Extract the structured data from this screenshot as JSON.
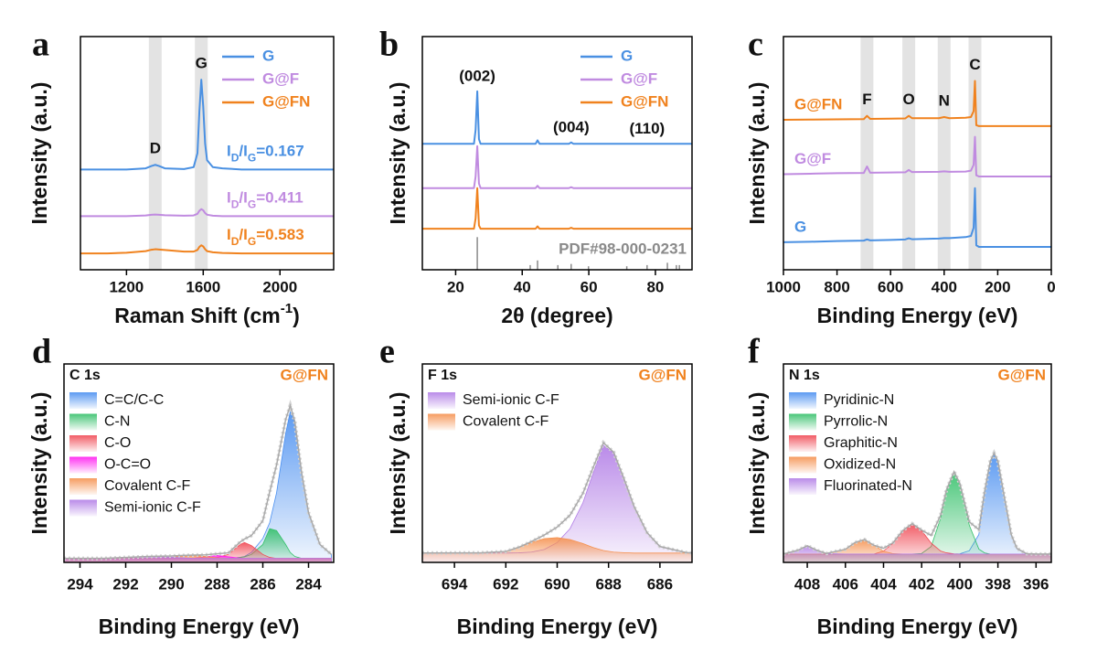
{
  "chart_data": [
    {
      "type": "line",
      "panel_label": "a",
      "y_label": "Intensity (a.u.)",
      "x_label": [
        "Raman Shift (cm",
        "-1",
        ")"
      ],
      "xlim": [
        960,
        2280
      ],
      "ylim": [
        0,
        100
      ],
      "xticks": [
        1200,
        1600,
        2000
      ],
      "legend": "upper right",
      "x": [
        960,
        1100,
        1200,
        1300,
        1330,
        1350,
        1370,
        1400,
        1500,
        1550,
        1570,
        1580,
        1590,
        1600,
        1610,
        1620,
        1650,
        1700,
        1800,
        2000,
        2280
      ],
      "series": [
        {
          "name": "G",
          "color": "#4a90e2",
          "values": [
            43,
            43,
            43,
            43.5,
            44.5,
            45,
            44.5,
            43.5,
            43.2,
            44,
            50,
            68,
            81.5,
            70,
            54,
            47,
            44,
            43.5,
            43,
            43,
            43
          ]
        },
        {
          "name": "G@F",
          "color": "#c08be0",
          "values": [
            23,
            23,
            23,
            23.3,
            23.6,
            23.7,
            23.6,
            23.4,
            23.2,
            23.3,
            24,
            25.3,
            26,
            25.5,
            24.3,
            23.6,
            23.2,
            23,
            23,
            23,
            23
          ]
        },
        {
          "name": "G@FN",
          "color": "#f0821e",
          "values": [
            7,
            7,
            7.3,
            8,
            8.6,
            8.8,
            8.7,
            8.5,
            7.8,
            7.8,
            8.5,
            9.8,
            10.5,
            10,
            8.8,
            8,
            7.5,
            7.2,
            7,
            7,
            7
          ]
        }
      ],
      "bands": [
        {
          "label": "D",
          "x": 1350
        },
        {
          "label": "G",
          "x": 1590
        }
      ],
      "ratio_labels": [
        [
          "I",
          "D",
          "/I",
          "G",
          "=0.167"
        ],
        [
          "I",
          "D",
          "/I",
          "G",
          "=0.411"
        ],
        [
          "I",
          "D",
          "/I",
          "G",
          "=0.583"
        ]
      ]
    },
    {
      "type": "line",
      "panel_label": "b",
      "y_label": "Intensity (a.u.)",
      "x_label": [
        "2θ (degree)"
      ],
      "xlim": [
        10,
        91
      ],
      "ylim": [
        0,
        100
      ],
      "xticks": [
        20,
        40,
        60,
        80
      ],
      "legend": "upper right",
      "x": [
        10,
        25.5,
        26,
        26.5,
        27,
        27.5,
        44,
        44.6,
        45.2,
        54,
        54.7,
        55.4,
        91
      ],
      "series": [
        {
          "name": "G",
          "color": "#4a90e2",
          "values": [
            54,
            54,
            60,
            76.5,
            56,
            54,
            54,
            55.5,
            54,
            54,
            54.6,
            54,
            54
          ]
        },
        {
          "name": "G@F",
          "color": "#c08be0",
          "values": [
            35,
            35,
            40,
            53,
            37,
            35,
            35,
            36,
            35,
            35,
            35.4,
            35,
            35
          ]
        },
        {
          "name": "G@FN",
          "color": "#f0821e",
          "values": [
            17.6,
            17.6,
            22,
            35,
            19,
            17.6,
            17.6,
            18.6,
            17.6,
            17.6,
            18,
            17.6,
            17.6
          ]
        }
      ],
      "annotations": [
        {
          "label": "(002)",
          "x": 26.5
        },
        {
          "label": "(004)",
          "x": 54.7
        },
        {
          "label": "(110)",
          "x": 77.5
        }
      ],
      "reference": {
        "name": "PDF#98-000-0231",
        "color": "#8a8a8a",
        "positions": [
          26.5,
          42.4,
          44.6,
          50.7,
          54.7,
          59.9,
          71.4,
          77.5,
          83.6,
          86.3,
          87.2
        ],
        "heights": [
          14,
          2,
          4,
          2,
          2.5,
          1.5,
          1.5,
          2,
          3,
          2,
          2
        ]
      }
    },
    {
      "type": "line",
      "panel_label": "c",
      "y_label": "Intensity (a.u.)",
      "x_label": [
        "Binding Energy (eV)"
      ],
      "xlim": [
        1000,
        0
      ],
      "ylim": [
        0,
        100
      ],
      "xticks": [
        1000,
        800,
        600,
        400,
        200,
        0
      ],
      "legend": "inline",
      "x": [
        1000,
        900,
        800,
        700,
        688,
        676,
        600,
        545,
        532,
        520,
        420,
        400,
        380,
        320,
        300,
        290,
        285,
        280,
        270,
        200,
        100,
        0
      ],
      "series": [
        {
          "name": "G@FN",
          "color": "#f0821e",
          "values": [
            64.3,
            64.4,
            64.5,
            64.6,
            66,
            64.7,
            64.8,
            64.9,
            66,
            65,
            65,
            65.5,
            65,
            65.2,
            65.5,
            68,
            81,
            62,
            61.6,
            61.6,
            61.6,
            61.6
          ]
        },
        {
          "name": "G@F",
          "color": "#c08be0",
          "values": [
            41,
            41.2,
            41.4,
            41.5,
            44.3,
            41.6,
            41.7,
            41.8,
            42.8,
            41.9,
            42,
            42.2,
            42,
            42.1,
            42.5,
            45,
            57,
            40.5,
            40,
            40,
            40,
            40
          ]
        },
        {
          "name": "G",
          "color": "#4a90e2",
          "values": [
            11.8,
            12,
            12.3,
            12.5,
            13,
            12.6,
            12.8,
            13,
            13.5,
            13.1,
            13.4,
            13.6,
            13.6,
            14,
            14.5,
            18,
            35,
            10.5,
            9.8,
            9.8,
            9.8,
            9.8
          ]
        }
      ],
      "bands": [
        {
          "label": "F",
          "x": 688
        },
        {
          "label": "O",
          "x": 532
        },
        {
          "label": "N",
          "x": 400
        },
        {
          "label": "C",
          "x": 285
        }
      ]
    },
    {
      "type": "area",
      "panel_label": "d",
      "y_label": "Intensity (a.u.)",
      "x_label": [
        "Binding Energy (eV)"
      ],
      "region": "C 1s",
      "sample": "G@FN",
      "sample_color": "#f0821e",
      "xlim": [
        294.7,
        282.9
      ],
      "ylim": [
        0,
        100
      ],
      "xticks": [
        294,
        292,
        290,
        288,
        286,
        284
      ],
      "legend": "upper left",
      "x": [
        294.7,
        293,
        292,
        291,
        290,
        289.5,
        289,
        288.5,
        288,
        287.5,
        287,
        286.8,
        286.5,
        286,
        285.7,
        285.4,
        285,
        284.8,
        284.6,
        284.3,
        284,
        283.5,
        283
      ],
      "series": [
        {
          "name": "C=C/C-C",
          "color": "#4a8ff0",
          "values": [
            2,
            2,
            2,
            2,
            2,
            2,
            2,
            2,
            2,
            2,
            2.5,
            3,
            5,
            12,
            20,
            35,
            65,
            76,
            70,
            45,
            25,
            9,
            4
          ]
        },
        {
          "name": "C-N",
          "color": "#35c06a",
          "values": [
            2,
            2,
            2,
            2,
            2,
            2,
            2,
            2,
            2,
            2,
            2.5,
            2.8,
            4,
            9,
            17,
            16,
            9,
            5,
            3,
            2,
            2,
            2,
            2
          ]
        },
        {
          "name": "C-O",
          "color": "#f04a55",
          "values": [
            2,
            2,
            2,
            2,
            2,
            2,
            2,
            2,
            2.5,
            4,
            9,
            10,
            8.5,
            4,
            2.5,
            2,
            2,
            2,
            2,
            2,
            2,
            2,
            2
          ]
        },
        {
          "name": "O-C=O",
          "color": "#ff1cf0",
          "values": [
            2,
            2,
            2,
            2,
            2,
            2,
            2.2,
            2.8,
            3.5,
            2.8,
            2.2,
            2,
            2,
            2,
            2,
            2,
            2,
            2,
            2,
            2,
            2,
            2,
            2
          ]
        },
        {
          "name": "Covalent C-F",
          "color": "#f5914f",
          "values": [
            2,
            2,
            2,
            2,
            2.5,
            3.2,
            3.5,
            3,
            2.3,
            2,
            2,
            2,
            2,
            2,
            2,
            2,
            2,
            2,
            2,
            2,
            2,
            2,
            2
          ]
        },
        {
          "name": "Semi-ionic C-F",
          "color": "#b27ee6",
          "values": [
            2,
            2,
            2.5,
            3,
            2.7,
            2.3,
            2,
            2,
            2,
            2,
            2,
            2,
            2,
            2,
            2,
            2,
            2,
            2,
            2,
            2,
            2,
            2,
            2
          ]
        }
      ],
      "envelope": {
        "color": "#a9a9a9",
        "values": [
          2,
          2,
          2.5,
          3,
          3.2,
          3.5,
          3.7,
          3.8,
          4.3,
          4.8,
          10.2,
          11.8,
          13.5,
          21,
          35.5,
          49,
          72,
          79,
          71,
          45,
          25,
          9,
          4
        ]
      }
    },
    {
      "type": "area",
      "panel_label": "e",
      "y_label": "Intensity (a.u.)",
      "x_label": [
        "Binding Energy (eV)"
      ],
      "region": "F 1s",
      "sample": "G@FN",
      "sample_color": "#f0821e",
      "xlim": [
        695.25,
        684.75
      ],
      "ylim": [
        0,
        100
      ],
      "xticks": [
        694,
        692,
        690,
        688,
        686
      ],
      "legend": "upper left",
      "x": [
        695.25,
        693,
        692,
        691.5,
        691,
        690.5,
        690,
        689.5,
        689,
        688.6,
        688.2,
        687.8,
        687.4,
        687,
        686.5,
        686,
        685,
        684.75
      ],
      "series": [
        {
          "name": "Semi-ionic C-F",
          "color": "#b27ee6",
          "values": [
            4.7,
            4.7,
            4.7,
            4.8,
            5.2,
            6.5,
            10,
            17,
            30,
            45,
            59,
            55,
            42,
            28,
            15,
            8,
            5,
            4.7
          ]
        },
        {
          "name": "Covalent C-F",
          "color": "#f5914f",
          "values": [
            4.7,
            4.8,
            5.5,
            7.5,
            10,
            12,
            12.5,
            11.5,
            9.5,
            7.5,
            6,
            5.2,
            4.9,
            4.7,
            4.7,
            4.7,
            4.7,
            4.7
          ]
        }
      ],
      "envelope": {
        "color": "#a9a9a9",
        "values": [
          4.7,
          4.8,
          5.5,
          7.6,
          10.5,
          13.8,
          17.8,
          23.8,
          34.8,
          47.8,
          60.3,
          55.5,
          42.2,
          28,
          15,
          8,
          5,
          4.7
        ]
      }
    },
    {
      "type": "area",
      "panel_label": "f",
      "y_label": "Intensity (a.u.)",
      "x_label": [
        "Binding Energy (eV)"
      ],
      "region": "N 1s",
      "sample": "G@FN",
      "sample_color": "#f0821e",
      "xlim": [
        409.25,
        395.2
      ],
      "ylim": [
        0,
        100
      ],
      "xticks": [
        408,
        406,
        404,
        402,
        400,
        398,
        396
      ],
      "legend": "upper left",
      "x": [
        409.25,
        408.5,
        408,
        407.5,
        407,
        406,
        405.5,
        405,
        404.5,
        404,
        403.5,
        403,
        402.5,
        402,
        401.5,
        401,
        400.7,
        400.3,
        400,
        399.5,
        399,
        398.7,
        398.4,
        398.2,
        398,
        397.7,
        397.3,
        397,
        396.5,
        396,
        395.2
      ],
      "series": [
        {
          "name": "Pyridinic-N",
          "color": "#4a8ff0",
          "values": [
            4.2,
            4.2,
            4.2,
            4.2,
            4.2,
            4.2,
            4.2,
            4.2,
            4.2,
            4.2,
            4.2,
            4.2,
            4.2,
            4.2,
            4.2,
            4.2,
            4.2,
            4.2,
            4.3,
            5.9,
            14,
            35,
            51,
            55,
            51,
            35,
            14,
            7,
            4.4,
            4.2,
            4.2
          ]
        },
        {
          "name": "Pyrrolic-N",
          "color": "#35c06a",
          "values": [
            4.2,
            4.2,
            4.2,
            4.2,
            4.2,
            4.2,
            4.2,
            4.2,
            4.2,
            4.2,
            4.2,
            4.2,
            4.2,
            4.5,
            8,
            22.4,
            36,
            45.6,
            39.8,
            18.7,
            6.7,
            4.8,
            4.2,
            4.2,
            4.2,
            4.2,
            4.2,
            4.2,
            4.2,
            4.2,
            4.2
          ]
        },
        {
          "name": "Graphitic-N",
          "color": "#f04a55",
          "values": [
            4.2,
            4.2,
            4.2,
            4.2,
            4.2,
            4.2,
            4.2,
            4.2,
            4.2,
            5.7,
            9.7,
            16,
            19.5,
            16,
            9.7,
            5.7,
            4.8,
            4.3,
            4.2,
            4.2,
            4.2,
            4.2,
            4.2,
            4.2,
            4.2,
            4.2,
            4.2,
            4.2,
            4.2,
            4.2,
            4.2
          ]
        },
        {
          "name": "Oxidized-N",
          "color": "#f5914f",
          "values": [
            4.2,
            4.2,
            4.2,
            4.2,
            4.3,
            6.6,
            10,
            11.5,
            8.6,
            5.6,
            4.4,
            4.2,
            4.2,
            4.2,
            4.2,
            4.2,
            4.2,
            4.2,
            4.2,
            4.2,
            4.2,
            4.2,
            4.2,
            4.2,
            4.2,
            4.2,
            4.2,
            4.2,
            4.2,
            4.2,
            4.2
          ]
        },
        {
          "name": "Fluorinated-N",
          "color": "#b27ee6",
          "values": [
            4.2,
            6.1,
            8.4,
            6.1,
            4.4,
            4.2,
            4.2,
            4.2,
            4.2,
            4.2,
            4.2,
            4.2,
            4.2,
            4.2,
            4.2,
            4.2,
            4.2,
            4.2,
            4.2,
            4.2,
            4.2,
            4.2,
            4.2,
            4.2,
            4.2,
            4.2,
            4.2,
            4.2,
            4.2,
            4.2,
            4.2
          ]
        }
      ],
      "envelope": {
        "color": "#a9a9a9",
        "values": [
          4.2,
          6.1,
          8.4,
          6.1,
          4.5,
          6.6,
          10,
          11.5,
          8.6,
          7.1,
          9.9,
          16,
          19.5,
          16.3,
          13.5,
          23.9,
          36.6,
          45.7,
          39.9,
          20.4,
          16.5,
          35.6,
          51,
          55,
          51,
          35,
          14,
          7,
          4.4,
          4.2,
          4.2
        ]
      }
    }
  ]
}
